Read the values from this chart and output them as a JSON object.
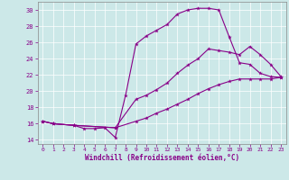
{
  "xlabel": "Windchill (Refroidissement éolien,°C)",
  "xlim": [
    -0.5,
    23.5
  ],
  "ylim": [
    13.5,
    31.0
  ],
  "xticks": [
    0,
    1,
    2,
    3,
    4,
    5,
    6,
    7,
    8,
    9,
    10,
    11,
    12,
    13,
    14,
    15,
    16,
    17,
    18,
    19,
    20,
    21,
    22,
    23
  ],
  "yticks": [
    14,
    16,
    18,
    20,
    22,
    24,
    26,
    28,
    30
  ],
  "bg_color": "#cce8e8",
  "line_color": "#880088",
  "line1_x": [
    0,
    1,
    3,
    4,
    5,
    6,
    7,
    8,
    9,
    10,
    11,
    12,
    13,
    14,
    15,
    16,
    17,
    18,
    19,
    20,
    21,
    22,
    23
  ],
  "line1_y": [
    16.3,
    16.0,
    15.8,
    15.4,
    15.4,
    15.5,
    14.3,
    19.5,
    25.8,
    26.8,
    27.5,
    28.2,
    29.5,
    30.0,
    30.2,
    30.2,
    30.0,
    26.7,
    23.5,
    23.3,
    22.2,
    21.8,
    21.7
  ],
  "line2_x": [
    0,
    1,
    3,
    7,
    9,
    10,
    11,
    12,
    13,
    14,
    15,
    16,
    17,
    18,
    19,
    20,
    21,
    22,
    23
  ],
  "line2_y": [
    16.3,
    16.0,
    15.8,
    15.5,
    19.0,
    19.5,
    20.2,
    21.0,
    22.2,
    23.2,
    24.0,
    25.2,
    25.0,
    24.8,
    24.5,
    25.5,
    24.5,
    23.3,
    21.8
  ],
  "line3_x": [
    0,
    1,
    3,
    7,
    9,
    10,
    11,
    12,
    13,
    14,
    15,
    16,
    17,
    18,
    19,
    20,
    21,
    22,
    23
  ],
  "line3_y": [
    16.3,
    16.0,
    15.8,
    15.5,
    16.3,
    16.7,
    17.3,
    17.8,
    18.4,
    19.0,
    19.7,
    20.3,
    20.8,
    21.2,
    21.5,
    21.5,
    21.5,
    21.5,
    21.7
  ]
}
